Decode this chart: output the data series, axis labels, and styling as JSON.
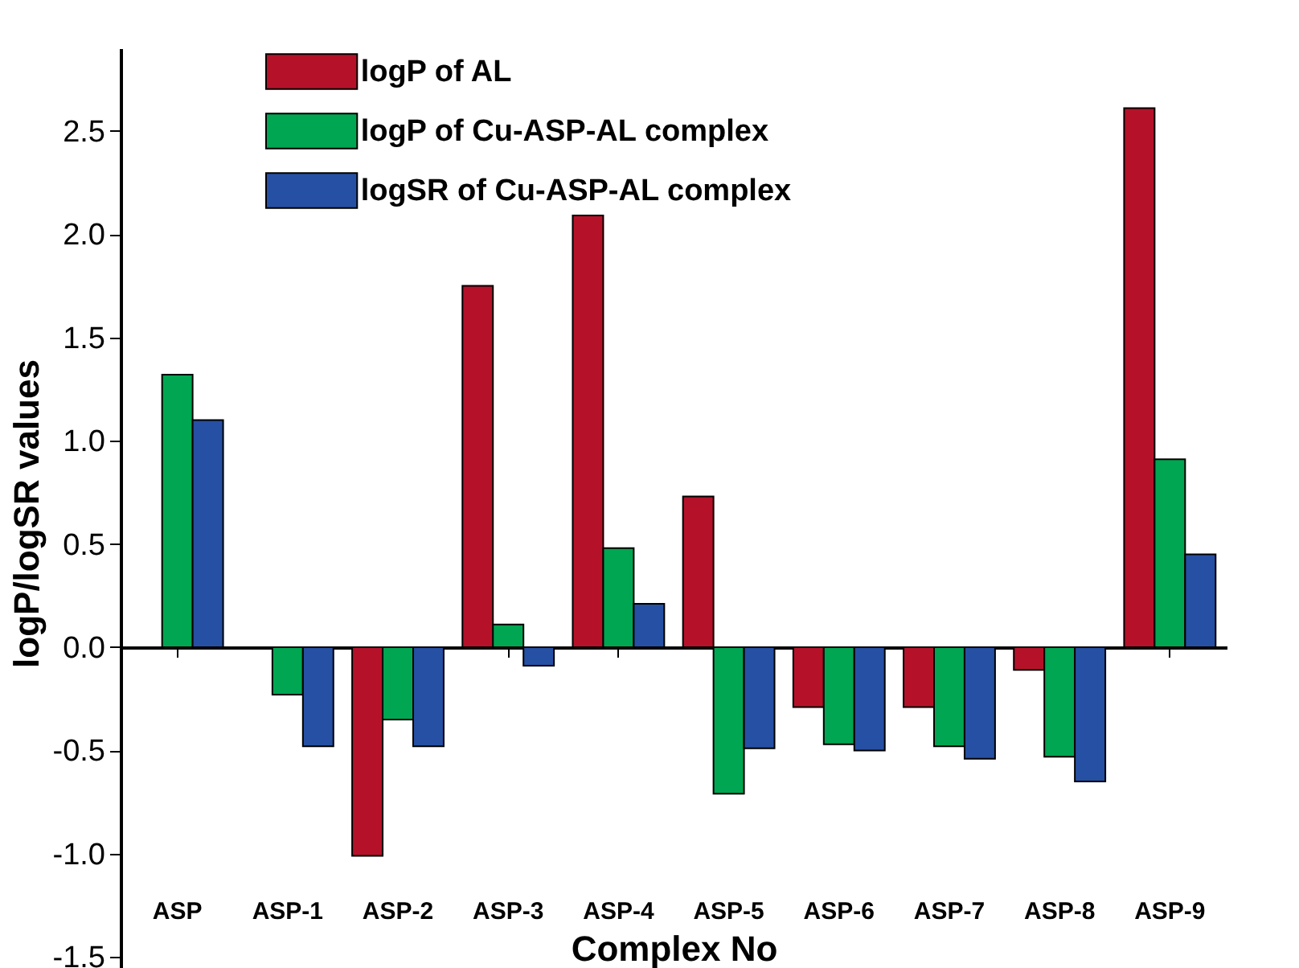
{
  "chart_data": {
    "type": "bar",
    "xlabel": "Complex No",
    "ylabel": "logP/logSR values",
    "categories": [
      "ASP",
      "ASP-1",
      "ASP-2",
      "ASP-3",
      "ASP-4",
      "ASP-5",
      "ASP-6",
      "ASP-7",
      "ASP-8",
      "ASP-9"
    ],
    "series": [
      {
        "name": "logP of AL",
        "color": "#b5122a",
        "values": [
          null,
          null,
          -1.01,
          1.75,
          2.09,
          0.73,
          -0.29,
          -0.29,
          -0.11,
          2.61
        ]
      },
      {
        "name": "logP of Cu-ASP-AL complex",
        "color": "#00a651",
        "values": [
          1.32,
          -0.23,
          -0.35,
          0.11,
          0.48,
          -0.71,
          -0.47,
          -0.48,
          -0.53,
          0.91
        ]
      },
      {
        "name": "logSR of Cu-ASP-AL complex",
        "color": "#2650a3",
        "values": [
          1.1,
          -0.48,
          -0.48,
          -0.09,
          0.21,
          -0.49,
          -0.5,
          -0.54,
          -0.65,
          0.45
        ]
      }
    ],
    "ylim": [
      -1.6,
      2.9
    ],
    "yticks": [
      {
        "value": -1.5,
        "label": "-1.5"
      },
      {
        "value": -1,
        "label": "-1.0"
      },
      {
        "value": -0.5,
        "label": "-0.5"
      },
      {
        "value": 0,
        "label": "0.0"
      },
      {
        "value": 0.5,
        "label": "0.5"
      },
      {
        "value": 1,
        "label": "1.0"
      },
      {
        "value": 1.5,
        "label": "1.5"
      },
      {
        "value": 2,
        "label": "2.0"
      },
      {
        "value": 2.5,
        "label": "2.5"
      }
    ],
    "legend": "top"
  }
}
